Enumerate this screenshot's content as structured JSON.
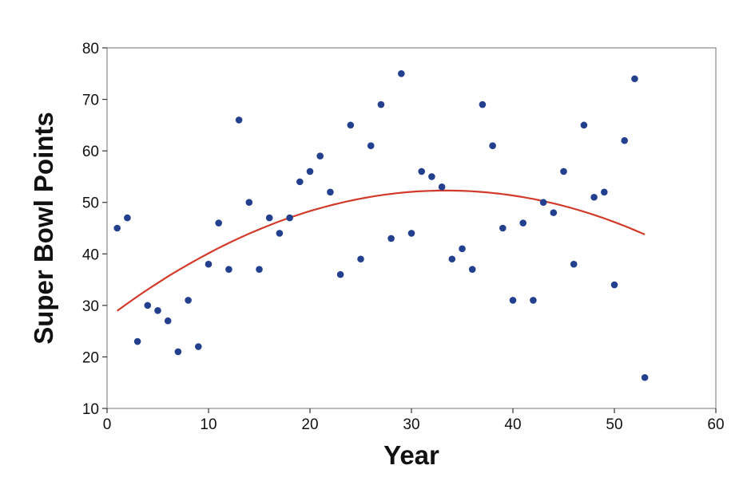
{
  "chart_data": {
    "type": "scatter",
    "xlabel": "Year",
    "ylabel": "Super Bowl Points",
    "xlim": [
      0,
      60
    ],
    "ylim": [
      10,
      80
    ],
    "xticks": [
      0,
      10,
      20,
      30,
      40,
      50,
      60
    ],
    "yticks": [
      10,
      20,
      30,
      40,
      50,
      60,
      70,
      80
    ],
    "grid": false,
    "colors": {
      "points": "#23408f",
      "fit_line": "#d23a2a",
      "frame": "#888888"
    },
    "points": [
      {
        "x": 1,
        "y": 45
      },
      {
        "x": 2,
        "y": 47
      },
      {
        "x": 3,
        "y": 23
      },
      {
        "x": 4,
        "y": 30
      },
      {
        "x": 5,
        "y": 29
      },
      {
        "x": 6,
        "y": 27
      },
      {
        "x": 7,
        "y": 21
      },
      {
        "x": 8,
        "y": 31
      },
      {
        "x": 9,
        "y": 22
      },
      {
        "x": 10,
        "y": 38
      },
      {
        "x": 11,
        "y": 46
      },
      {
        "x": 12,
        "y": 37
      },
      {
        "x": 13,
        "y": 66
      },
      {
        "x": 14,
        "y": 50
      },
      {
        "x": 15,
        "y": 37
      },
      {
        "x": 16,
        "y": 47
      },
      {
        "x": 17,
        "y": 44
      },
      {
        "x": 18,
        "y": 47
      },
      {
        "x": 19,
        "y": 54
      },
      {
        "x": 20,
        "y": 56
      },
      {
        "x": 21,
        "y": 59
      },
      {
        "x": 22,
        "y": 52
      },
      {
        "x": 23,
        "y": 36
      },
      {
        "x": 24,
        "y": 65
      },
      {
        "x": 25,
        "y": 39
      },
      {
        "x": 26,
        "y": 61
      },
      {
        "x": 27,
        "y": 69
      },
      {
        "x": 28,
        "y": 43
      },
      {
        "x": 29,
        "y": 75
      },
      {
        "x": 30,
        "y": 44
      },
      {
        "x": 31,
        "y": 56
      },
      {
        "x": 32,
        "y": 55
      },
      {
        "x": 33,
        "y": 53
      },
      {
        "x": 34,
        "y": 39
      },
      {
        "x": 35,
        "y": 41
      },
      {
        "x": 36,
        "y": 37
      },
      {
        "x": 37,
        "y": 69
      },
      {
        "x": 38,
        "y": 61
      },
      {
        "x": 39,
        "y": 45
      },
      {
        "x": 40,
        "y": 31
      },
      {
        "x": 41,
        "y": 46
      },
      {
        "x": 42,
        "y": 31
      },
      {
        "x": 43,
        "y": 50
      },
      {
        "x": 44,
        "y": 48
      },
      {
        "x": 45,
        "y": 56
      },
      {
        "x": 46,
        "y": 38
      },
      {
        "x": 47,
        "y": 65
      },
      {
        "x": 48,
        "y": 51
      },
      {
        "x": 49,
        "y": 52
      },
      {
        "x": 50,
        "y": 34
      },
      {
        "x": 51,
        "y": 62
      },
      {
        "x": 52,
        "y": 74
      },
      {
        "x": 53,
        "y": 16
      }
    ],
    "fit_curve": {
      "type": "quadratic",
      "x_range": [
        1,
        53
      ],
      "points": [
        {
          "x": 1,
          "y": 29
        },
        {
          "x": 10,
          "y": 40
        },
        {
          "x": 20,
          "y": 48.4
        },
        {
          "x": 30,
          "y": 52
        },
        {
          "x": 34,
          "y": 52.3
        },
        {
          "x": 40,
          "y": 51.3
        },
        {
          "x": 50,
          "y": 46.4
        },
        {
          "x": 53,
          "y": 43.6
        }
      ]
    }
  }
}
